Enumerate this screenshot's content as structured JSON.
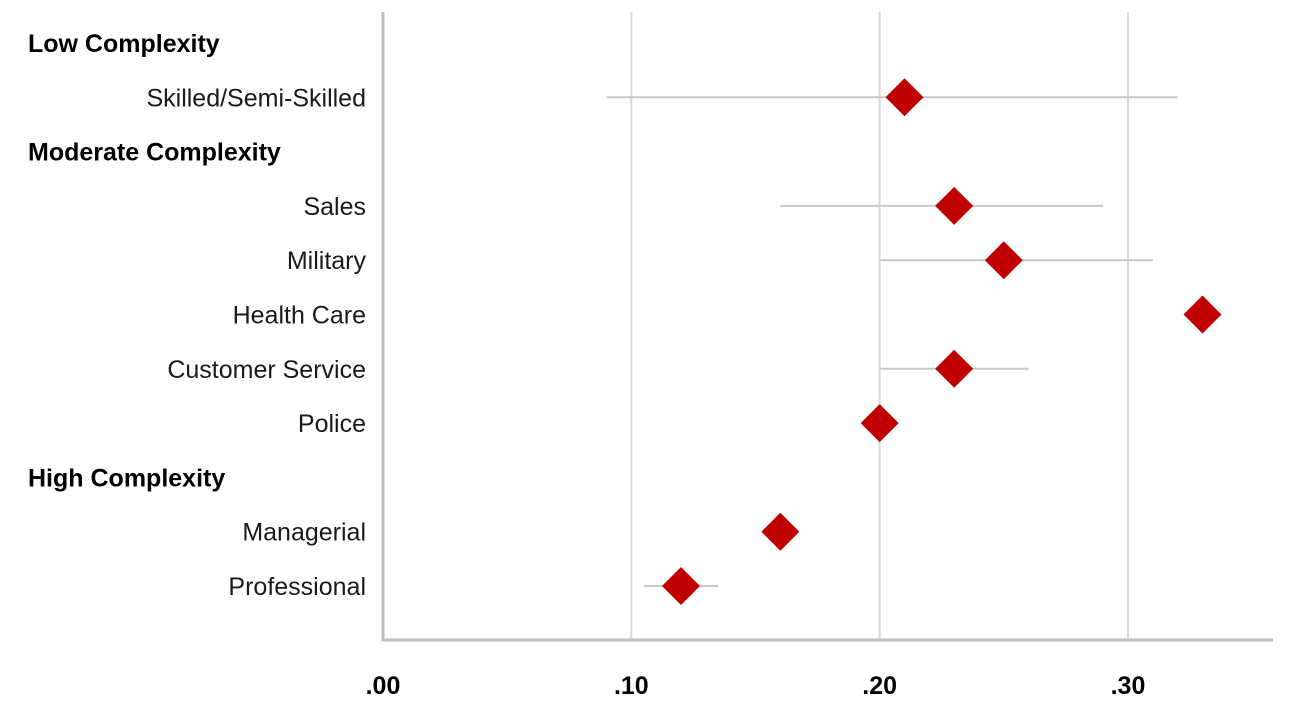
{
  "chart_data": {
    "type": "scatter",
    "orientation": "horizontal",
    "title": "",
    "xlabel": "",
    "ylabel": "",
    "xlim": [
      0.0,
      0.36
    ],
    "x_ticks": [
      {
        "value": 0.0,
        "label": ".00"
      },
      {
        "value": 0.1,
        "label": ".10"
      },
      {
        "value": 0.2,
        "label": ".20"
      },
      {
        "value": 0.3,
        "label": ".30"
      }
    ],
    "grid": {
      "vertical": true,
      "horizontal": false
    },
    "marker": {
      "shape": "diamond",
      "color": "#c00000"
    },
    "errorbar_color": "#c8c8c8",
    "gridline_color": "#d9d9d9",
    "axis_color": "#bfbfbf",
    "rows": [
      {
        "kind": "group",
        "label": "Low Complexity"
      },
      {
        "kind": "item",
        "label": "Skilled/Semi-Skilled",
        "value": 0.21,
        "ci": [
          0.09,
          0.32
        ]
      },
      {
        "kind": "group",
        "label": "Moderate Complexity"
      },
      {
        "kind": "item",
        "label": "Sales",
        "value": 0.23,
        "ci": [
          0.16,
          0.29
        ]
      },
      {
        "kind": "item",
        "label": "Military",
        "value": 0.25,
        "ci": [
          0.2,
          0.31
        ]
      },
      {
        "kind": "item",
        "label": "Health Care",
        "value": 0.33,
        "ci": null
      },
      {
        "kind": "item",
        "label": "Customer Service",
        "value": 0.23,
        "ci": [
          0.2,
          0.26
        ]
      },
      {
        "kind": "item",
        "label": "Police",
        "value": 0.2,
        "ci": null
      },
      {
        "kind": "group",
        "label": "High Complexity"
      },
      {
        "kind": "item",
        "label": "Managerial",
        "value": 0.16,
        "ci": null
      },
      {
        "kind": "item",
        "label": "Professional",
        "value": 0.12,
        "ci": [
          0.105,
          0.135
        ]
      }
    ]
  }
}
